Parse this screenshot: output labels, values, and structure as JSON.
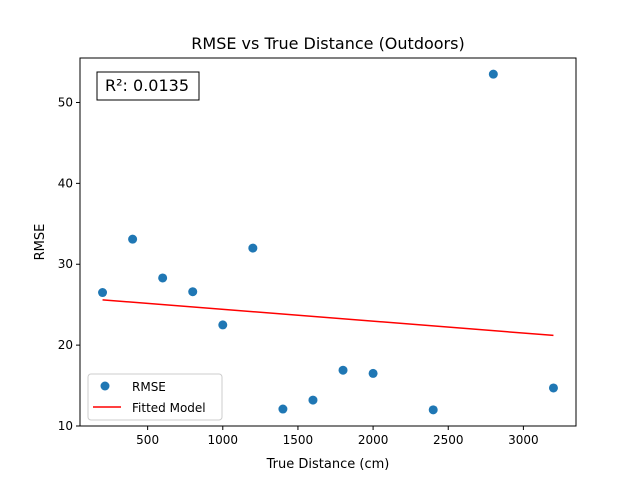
{
  "chart_data": {
    "type": "scatter",
    "title": "RMSE vs True Distance (Outdoors)",
    "xlabel": "True Distance (cm)",
    "ylabel": "RMSE",
    "xlim": [
      50,
      3350
    ],
    "ylim": [
      10,
      55.5
    ],
    "xticks": [
      500,
      1000,
      1500,
      2000,
      2500,
      3000
    ],
    "yticks": [
      10,
      20,
      30,
      40,
      50
    ],
    "grid": false,
    "legend_position": "lower-left",
    "annotation": "R²: 0.0135",
    "series": [
      {
        "name": "RMSE",
        "kind": "scatter",
        "color": "#1f77b4",
        "x": [
          200,
          400,
          600,
          800,
          1000,
          1200,
          1400,
          1600,
          1800,
          2000,
          2400,
          2800,
          3200
        ],
        "y": [
          26.5,
          33.1,
          28.3,
          26.6,
          22.5,
          32.0,
          12.1,
          13.2,
          16.9,
          16.5,
          12.0,
          53.5,
          14.7
        ]
      },
      {
        "name": "Fitted Model",
        "kind": "line",
        "color": "#ff0000",
        "x": [
          200,
          3200
        ],
        "y": [
          25.6,
          21.2
        ]
      }
    ]
  }
}
